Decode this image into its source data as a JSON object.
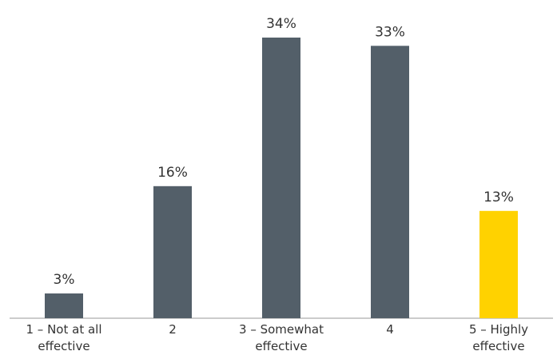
{
  "chart_data": {
    "type": "bar",
    "categories": [
      "1 – Not at all effective",
      "2",
      "3 – Somewhat effective",
      "4",
      "5 – Highly effective"
    ],
    "values": [
      3,
      16,
      34,
      33,
      13
    ],
    "value_labels": [
      "3%",
      "16%",
      "34%",
      "33%",
      "13%"
    ],
    "colors": [
      "#535f69",
      "#535f69",
      "#535f69",
      "#535f69",
      "#ffd200"
    ]
  }
}
